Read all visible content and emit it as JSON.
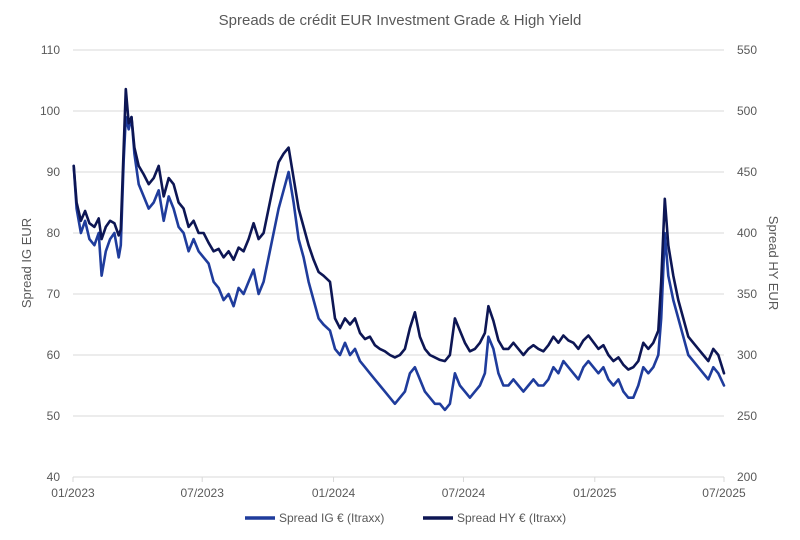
{
  "chart_data": {
    "type": "line",
    "title": "Spreads de crédit EUR Investment Grade & High Yield",
    "ylabel": "Spread IG EUR",
    "y2label": "Spread HY EUR",
    "ylim": [
      40,
      110
    ],
    "y2lim": [
      200,
      550
    ],
    "yticks": [
      "40",
      "50",
      "60",
      "70",
      "80",
      "90",
      "100",
      "110"
    ],
    "y2ticks": [
      "200",
      "250",
      "300",
      "350",
      "400",
      "450",
      "500",
      "550"
    ],
    "xlim": [
      "2023-01-01",
      "2025-07-01"
    ],
    "xticks": [
      {
        "date": "2023-01-01",
        "label": "01/2023"
      },
      {
        "date": "2023-07-01",
        "label": "07/2023"
      },
      {
        "date": "2024-01-01",
        "label": "01/2024"
      },
      {
        "date": "2024-07-01",
        "label": "07/2024"
      },
      {
        "date": "2025-01-01",
        "label": "01/2025"
      },
      {
        "date": "2025-07-01",
        "label": "07/2025"
      }
    ],
    "grid": true,
    "legend_position": "bottom",
    "series": [
      {
        "name": "Spread IG € (Itraxx)",
        "axis": "left",
        "color": "#1f3c9c",
        "points": [
          [
            "2023-01-02",
            91
          ],
          [
            "2023-01-06",
            84
          ],
          [
            "2023-01-12",
            80
          ],
          [
            "2023-01-18",
            82
          ],
          [
            "2023-01-24",
            79
          ],
          [
            "2023-01-31",
            78
          ],
          [
            "2023-02-06",
            80
          ],
          [
            "2023-02-10",
            73
          ],
          [
            "2023-02-16",
            77
          ],
          [
            "2023-02-22",
            79
          ],
          [
            "2023-02-28",
            80
          ],
          [
            "2023-03-06",
            76
          ],
          [
            "2023-03-09",
            78
          ],
          [
            "2023-03-13",
            92
          ],
          [
            "2023-03-16",
            99
          ],
          [
            "2023-03-20",
            97
          ],
          [
            "2023-03-24",
            99
          ],
          [
            "2023-03-28",
            93
          ],
          [
            "2023-04-03",
            88
          ],
          [
            "2023-04-10",
            86
          ],
          [
            "2023-04-17",
            84
          ],
          [
            "2023-04-24",
            85
          ],
          [
            "2023-05-01",
            87
          ],
          [
            "2023-05-08",
            82
          ],
          [
            "2023-05-15",
            86
          ],
          [
            "2023-05-22",
            84
          ],
          [
            "2023-05-29",
            81
          ],
          [
            "2023-06-05",
            80
          ],
          [
            "2023-06-12",
            77
          ],
          [
            "2023-06-19",
            79
          ],
          [
            "2023-06-26",
            77
          ],
          [
            "2023-07-03",
            76
          ],
          [
            "2023-07-10",
            75
          ],
          [
            "2023-07-17",
            72
          ],
          [
            "2023-07-24",
            71
          ],
          [
            "2023-07-31",
            69
          ],
          [
            "2023-08-07",
            70
          ],
          [
            "2023-08-14",
            68
          ],
          [
            "2023-08-21",
            71
          ],
          [
            "2023-08-28",
            70
          ],
          [
            "2023-09-04",
            72
          ],
          [
            "2023-09-11",
            74
          ],
          [
            "2023-09-18",
            70
          ],
          [
            "2023-09-25",
            72
          ],
          [
            "2023-10-02",
            76
          ],
          [
            "2023-10-09",
            80
          ],
          [
            "2023-10-16",
            84
          ],
          [
            "2023-10-23",
            87
          ],
          [
            "2023-10-30",
            90
          ],
          [
            "2023-11-06",
            85
          ],
          [
            "2023-11-13",
            79
          ],
          [
            "2023-11-20",
            76
          ],
          [
            "2023-11-27",
            72
          ],
          [
            "2023-12-04",
            69
          ],
          [
            "2023-12-11",
            66
          ],
          [
            "2023-12-18",
            65
          ],
          [
            "2023-12-27",
            64
          ],
          [
            "2024-01-03",
            61
          ],
          [
            "2024-01-10",
            60
          ],
          [
            "2024-01-17",
            62
          ],
          [
            "2024-01-24",
            60
          ],
          [
            "2024-01-31",
            61
          ],
          [
            "2024-02-07",
            59
          ],
          [
            "2024-02-14",
            58
          ],
          [
            "2024-02-21",
            57
          ],
          [
            "2024-02-28",
            56
          ],
          [
            "2024-03-06",
            55
          ],
          [
            "2024-03-13",
            54
          ],
          [
            "2024-03-20",
            53
          ],
          [
            "2024-03-27",
            52
          ],
          [
            "2024-04-03",
            53
          ],
          [
            "2024-04-10",
            54
          ],
          [
            "2024-04-17",
            57
          ],
          [
            "2024-04-24",
            58
          ],
          [
            "2024-05-01",
            56
          ],
          [
            "2024-05-08",
            54
          ],
          [
            "2024-05-15",
            53
          ],
          [
            "2024-05-22",
            52
          ],
          [
            "2024-05-29",
            52
          ],
          [
            "2024-06-05",
            51
          ],
          [
            "2024-06-12",
            52
          ],
          [
            "2024-06-19",
            57
          ],
          [
            "2024-06-26",
            55
          ],
          [
            "2024-07-03",
            54
          ],
          [
            "2024-07-10",
            53
          ],
          [
            "2024-07-17",
            54
          ],
          [
            "2024-07-24",
            55
          ],
          [
            "2024-07-31",
            57
          ],
          [
            "2024-08-05",
            63
          ],
          [
            "2024-08-12",
            61
          ],
          [
            "2024-08-19",
            57
          ],
          [
            "2024-08-26",
            55
          ],
          [
            "2024-09-02",
            55
          ],
          [
            "2024-09-09",
            56
          ],
          [
            "2024-09-16",
            55
          ],
          [
            "2024-09-23",
            54
          ],
          [
            "2024-09-30",
            55
          ],
          [
            "2024-10-07",
            56
          ],
          [
            "2024-10-14",
            55
          ],
          [
            "2024-10-21",
            55
          ],
          [
            "2024-10-28",
            56
          ],
          [
            "2024-11-04",
            58
          ],
          [
            "2024-11-11",
            57
          ],
          [
            "2024-11-18",
            59
          ],
          [
            "2024-11-25",
            58
          ],
          [
            "2024-12-02",
            57
          ],
          [
            "2024-12-09",
            56
          ],
          [
            "2024-12-16",
            58
          ],
          [
            "2024-12-23",
            59
          ],
          [
            "2025-01-06",
            57
          ],
          [
            "2025-01-13",
            58
          ],
          [
            "2025-01-20",
            56
          ],
          [
            "2025-01-27",
            55
          ],
          [
            "2025-02-03",
            56
          ],
          [
            "2025-02-10",
            54
          ],
          [
            "2025-02-17",
            53
          ],
          [
            "2025-02-24",
            53
          ],
          [
            "2025-03-03",
            55
          ],
          [
            "2025-03-10",
            58
          ],
          [
            "2025-03-17",
            57
          ],
          [
            "2025-03-24",
            58
          ],
          [
            "2025-03-31",
            60
          ],
          [
            "2025-04-04",
            66
          ],
          [
            "2025-04-07",
            74
          ],
          [
            "2025-04-09",
            80
          ],
          [
            "2025-04-14",
            73
          ],
          [
            "2025-04-21",
            69
          ],
          [
            "2025-04-28",
            66
          ],
          [
            "2025-05-05",
            63
          ],
          [
            "2025-05-12",
            60
          ],
          [
            "2025-05-19",
            59
          ],
          [
            "2025-05-26",
            58
          ],
          [
            "2025-06-02",
            57
          ],
          [
            "2025-06-09",
            56
          ],
          [
            "2025-06-16",
            58
          ],
          [
            "2025-06-23",
            57
          ],
          [
            "2025-07-01",
            55
          ]
        ]
      },
      {
        "name": "Spread HY € (Itraxx)",
        "axis": "right",
        "color": "#0d1654",
        "points": [
          [
            "2023-01-02",
            455
          ],
          [
            "2023-01-06",
            425
          ],
          [
            "2023-01-12",
            410
          ],
          [
            "2023-01-18",
            418
          ],
          [
            "2023-01-24",
            408
          ],
          [
            "2023-01-31",
            405
          ],
          [
            "2023-02-06",
            412
          ],
          [
            "2023-02-10",
            395
          ],
          [
            "2023-02-16",
            405
          ],
          [
            "2023-02-22",
            410
          ],
          [
            "2023-02-28",
            408
          ],
          [
            "2023-03-06",
            398
          ],
          [
            "2023-03-09",
            403
          ],
          [
            "2023-03-13",
            470
          ],
          [
            "2023-03-16",
            518
          ],
          [
            "2023-03-20",
            490
          ],
          [
            "2023-03-24",
            495
          ],
          [
            "2023-03-28",
            470
          ],
          [
            "2023-04-03",
            455
          ],
          [
            "2023-04-10",
            448
          ],
          [
            "2023-04-17",
            440
          ],
          [
            "2023-04-24",
            445
          ],
          [
            "2023-05-01",
            455
          ],
          [
            "2023-05-08",
            430
          ],
          [
            "2023-05-15",
            445
          ],
          [
            "2023-05-22",
            440
          ],
          [
            "2023-05-29",
            425
          ],
          [
            "2023-06-05",
            420
          ],
          [
            "2023-06-12",
            405
          ],
          [
            "2023-06-19",
            410
          ],
          [
            "2023-06-26",
            400
          ],
          [
            "2023-07-03",
            400
          ],
          [
            "2023-07-10",
            392
          ],
          [
            "2023-07-17",
            385
          ],
          [
            "2023-07-24",
            387
          ],
          [
            "2023-07-31",
            380
          ],
          [
            "2023-08-07",
            385
          ],
          [
            "2023-08-14",
            378
          ],
          [
            "2023-08-21",
            388
          ],
          [
            "2023-08-28",
            385
          ],
          [
            "2023-09-04",
            395
          ],
          [
            "2023-09-11",
            408
          ],
          [
            "2023-09-18",
            395
          ],
          [
            "2023-09-25",
            400
          ],
          [
            "2023-10-02",
            420
          ],
          [
            "2023-10-09",
            440
          ],
          [
            "2023-10-16",
            458
          ],
          [
            "2023-10-23",
            465
          ],
          [
            "2023-10-30",
            470
          ],
          [
            "2023-11-06",
            445
          ],
          [
            "2023-11-13",
            420
          ],
          [
            "2023-11-20",
            405
          ],
          [
            "2023-11-27",
            390
          ],
          [
            "2023-12-04",
            378
          ],
          [
            "2023-12-11",
            368
          ],
          [
            "2023-12-18",
            365
          ],
          [
            "2023-12-27",
            360
          ],
          [
            "2024-01-03",
            330
          ],
          [
            "2024-01-10",
            322
          ],
          [
            "2024-01-17",
            330
          ],
          [
            "2024-01-24",
            325
          ],
          [
            "2024-01-31",
            330
          ],
          [
            "2024-02-07",
            318
          ],
          [
            "2024-02-14",
            313
          ],
          [
            "2024-02-21",
            315
          ],
          [
            "2024-02-28",
            308
          ],
          [
            "2024-03-06",
            305
          ],
          [
            "2024-03-13",
            303
          ],
          [
            "2024-03-20",
            300
          ],
          [
            "2024-03-27",
            298
          ],
          [
            "2024-04-03",
            300
          ],
          [
            "2024-04-10",
            305
          ],
          [
            "2024-04-17",
            322
          ],
          [
            "2024-04-24",
            335
          ],
          [
            "2024-05-01",
            315
          ],
          [
            "2024-05-08",
            305
          ],
          [
            "2024-05-15",
            300
          ],
          [
            "2024-05-22",
            298
          ],
          [
            "2024-05-29",
            296
          ],
          [
            "2024-06-05",
            295
          ],
          [
            "2024-06-12",
            300
          ],
          [
            "2024-06-19",
            330
          ],
          [
            "2024-06-26",
            320
          ],
          [
            "2024-07-03",
            310
          ],
          [
            "2024-07-10",
            303
          ],
          [
            "2024-07-17",
            305
          ],
          [
            "2024-07-24",
            310
          ],
          [
            "2024-07-31",
            318
          ],
          [
            "2024-08-05",
            340
          ],
          [
            "2024-08-12",
            328
          ],
          [
            "2024-08-19",
            312
          ],
          [
            "2024-08-26",
            305
          ],
          [
            "2024-09-02",
            305
          ],
          [
            "2024-09-09",
            310
          ],
          [
            "2024-09-16",
            305
          ],
          [
            "2024-09-23",
            300
          ],
          [
            "2024-09-30",
            305
          ],
          [
            "2024-10-07",
            308
          ],
          [
            "2024-10-14",
            305
          ],
          [
            "2024-10-21",
            303
          ],
          [
            "2024-10-28",
            308
          ],
          [
            "2024-11-04",
            315
          ],
          [
            "2024-11-11",
            310
          ],
          [
            "2024-11-18",
            316
          ],
          [
            "2024-11-25",
            312
          ],
          [
            "2024-12-02",
            310
          ],
          [
            "2024-12-09",
            305
          ],
          [
            "2024-12-16",
            312
          ],
          [
            "2024-12-23",
            316
          ],
          [
            "2025-01-06",
            305
          ],
          [
            "2025-01-13",
            308
          ],
          [
            "2025-01-20",
            300
          ],
          [
            "2025-01-27",
            295
          ],
          [
            "2025-02-03",
            298
          ],
          [
            "2025-02-10",
            292
          ],
          [
            "2025-02-17",
            288
          ],
          [
            "2025-02-24",
            290
          ],
          [
            "2025-03-03",
            295
          ],
          [
            "2025-03-10",
            310
          ],
          [
            "2025-03-17",
            305
          ],
          [
            "2025-03-24",
            310
          ],
          [
            "2025-03-31",
            320
          ],
          [
            "2025-04-04",
            360
          ],
          [
            "2025-04-07",
            400
          ],
          [
            "2025-04-09",
            428
          ],
          [
            "2025-04-14",
            390
          ],
          [
            "2025-04-21",
            365
          ],
          [
            "2025-04-28",
            345
          ],
          [
            "2025-05-05",
            330
          ],
          [
            "2025-05-12",
            315
          ],
          [
            "2025-05-19",
            310
          ],
          [
            "2025-05-26",
            305
          ],
          [
            "2025-06-02",
            300
          ],
          [
            "2025-06-09",
            295
          ],
          [
            "2025-06-16",
            305
          ],
          [
            "2025-06-23",
            300
          ],
          [
            "2025-07-01",
            285
          ]
        ]
      }
    ]
  }
}
